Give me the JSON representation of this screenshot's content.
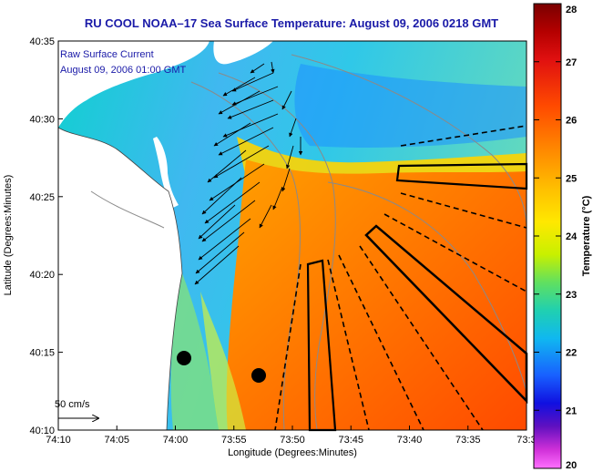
{
  "title": "RU COOL  NOAA–17  Sea Surface Temperature:  August 09, 2006 0218 GMT",
  "annotation": {
    "line1": "Raw Surface Current",
    "line2": "August 09, 2006 01:00 GMT"
  },
  "axes": {
    "xlabel": "Longitude (Degrees:Minutes)",
    "ylabel": "Latitude (Degrees:Minutes)",
    "xticks": [
      "74:10",
      "74:05",
      "74:00",
      "73:55",
      "73:50",
      "73:45",
      "73:40",
      "73:35",
      "73:3"
    ],
    "yticks": [
      "40:35",
      "40:30",
      "40:25",
      "40:20",
      "40:15",
      "40:10"
    ]
  },
  "scale": {
    "label": "50 cm/s"
  },
  "colorbar": {
    "label": "Temperature (°C)",
    "ticks": [
      "28",
      "27",
      "26",
      "25",
      "24",
      "23",
      "22",
      "21",
      "20"
    ],
    "min": 20,
    "max": 28
  },
  "colors": {
    "land": "#ffffff",
    "title_text": "#1a1aa8",
    "annotation_text": "#1a1aa8"
  }
}
